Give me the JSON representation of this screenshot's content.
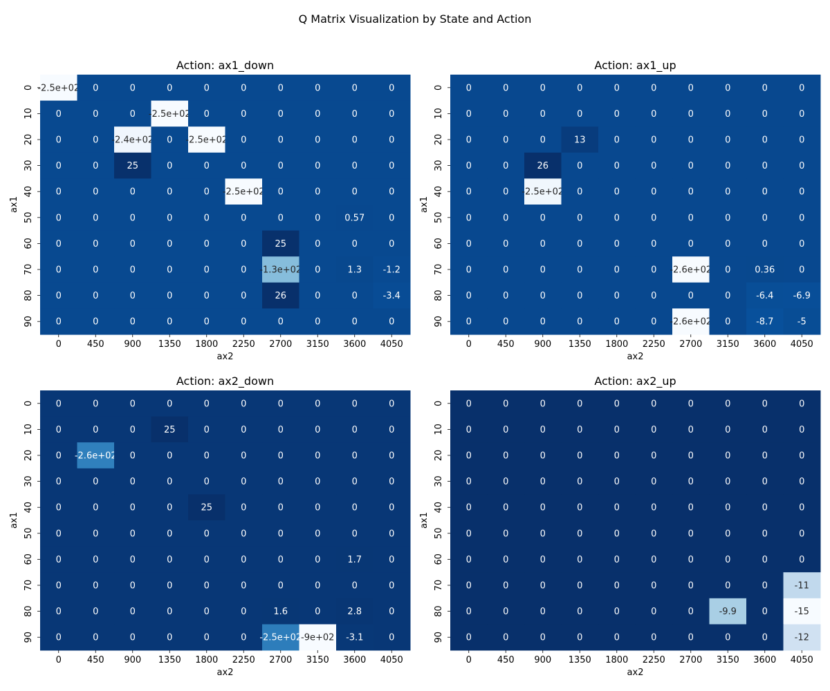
{
  "title": "Q Matrix Visualization by State and Action",
  "chart_data": [
    {
      "type": "heatmap",
      "title": "Action: ax1_down",
      "xlabel": "ax2",
      "ylabel": "ax1",
      "x_ticks": [
        "0",
        "450",
        "900",
        "1350",
        "1800",
        "2250",
        "2700",
        "3150",
        "3600",
        "4050"
      ],
      "y_ticks": [
        "0",
        "10",
        "20",
        "30",
        "40",
        "50",
        "60",
        "70",
        "80",
        "90"
      ],
      "colormap": "Blues",
      "values": [
        [
          -250,
          0,
          0,
          0,
          0,
          0,
          0,
          0,
          0,
          0
        ],
        [
          0,
          0,
          0,
          -250,
          0,
          0,
          0,
          0,
          0,
          0
        ],
        [
          0,
          0,
          -240,
          0,
          -250,
          0,
          0,
          0,
          0,
          0
        ],
        [
          0,
          0,
          25,
          0,
          0,
          0,
          0,
          0,
          0,
          0
        ],
        [
          0,
          0,
          0,
          0,
          0,
          -250,
          0,
          0,
          0,
          0
        ],
        [
          0,
          0,
          0,
          0,
          0,
          0,
          0,
          0,
          0.57,
          0
        ],
        [
          0,
          0,
          0,
          0,
          0,
          0,
          25,
          0,
          0,
          0
        ],
        [
          0,
          0,
          0,
          0,
          0,
          0,
          -130,
          0,
          1.3,
          -1.2
        ],
        [
          0,
          0,
          0,
          0,
          0,
          0,
          26,
          0,
          0,
          -3.4
        ],
        [
          0,
          0,
          0,
          0,
          0,
          0,
          0,
          0,
          0,
          0
        ]
      ],
      "labels": [
        [
          "-2.5e+02",
          "0",
          "0",
          "0",
          "0",
          "0",
          "0",
          "0",
          "0",
          "0"
        ],
        [
          "0",
          "0",
          "0",
          "-2.5e+02",
          "0",
          "0",
          "0",
          "0",
          "0",
          "0"
        ],
        [
          "0",
          "0",
          "-2.4e+02",
          "0",
          "-2.5e+02",
          "0",
          "0",
          "0",
          "0",
          "0"
        ],
        [
          "0",
          "0",
          "25",
          "0",
          "0",
          "0",
          "0",
          "0",
          "0",
          "0"
        ],
        [
          "0",
          "0",
          "0",
          "0",
          "0",
          "-2.5e+02",
          "0",
          "0",
          "0",
          "0"
        ],
        [
          "0",
          "0",
          "0",
          "0",
          "0",
          "0",
          "0",
          "0",
          "0.57",
          "0"
        ],
        [
          "0",
          "0",
          "0",
          "0",
          "0",
          "0",
          "25",
          "0",
          "0",
          "0"
        ],
        [
          "0",
          "0",
          "0",
          "0",
          "0",
          "0",
          "-1.3e+02",
          "0",
          "1.3",
          "-1.2"
        ],
        [
          "0",
          "0",
          "0",
          "0",
          "0",
          "0",
          "26",
          "0",
          "0",
          "-3.4"
        ],
        [
          "0",
          "0",
          "0",
          "0",
          "0",
          "0",
          "0",
          "0",
          "0",
          "0"
        ]
      ]
    },
    {
      "type": "heatmap",
      "title": "Action: ax1_up",
      "xlabel": "ax2",
      "ylabel": "ax1",
      "x_ticks": [
        "0",
        "450",
        "900",
        "1350",
        "1800",
        "2250",
        "2700",
        "3150",
        "3600",
        "4050"
      ],
      "y_ticks": [
        "0",
        "10",
        "20",
        "30",
        "40",
        "50",
        "60",
        "70",
        "80",
        "90"
      ],
      "colormap": "Blues",
      "values": [
        [
          0,
          0,
          0,
          0,
          0,
          0,
          0,
          0,
          0,
          0
        ],
        [
          0,
          0,
          0,
          0,
          0,
          0,
          0,
          0,
          0,
          0
        ],
        [
          0,
          0,
          0,
          13,
          0,
          0,
          0,
          0,
          0,
          0
        ],
        [
          0,
          0,
          26,
          0,
          0,
          0,
          0,
          0,
          0,
          0
        ],
        [
          0,
          0,
          -250,
          0,
          0,
          0,
          0,
          0,
          0,
          0
        ],
        [
          0,
          0,
          0,
          0,
          0,
          0,
          0,
          0,
          0,
          0
        ],
        [
          0,
          0,
          0,
          0,
          0,
          0,
          0,
          0,
          0,
          0
        ],
        [
          0,
          0,
          0,
          0,
          0,
          0,
          -260,
          0,
          0.36,
          0
        ],
        [
          0,
          0,
          0,
          0,
          0,
          0,
          0,
          0,
          -6.4,
          -6.9
        ],
        [
          0,
          0,
          0,
          0,
          0,
          0,
          -260,
          0,
          -8.7,
          -5
        ]
      ],
      "labels": [
        [
          "0",
          "0",
          "0",
          "0",
          "0",
          "0",
          "0",
          "0",
          "0",
          "0"
        ],
        [
          "0",
          "0",
          "0",
          "0",
          "0",
          "0",
          "0",
          "0",
          "0",
          "0"
        ],
        [
          "0",
          "0",
          "0",
          "13",
          "0",
          "0",
          "0",
          "0",
          "0",
          "0"
        ],
        [
          "0",
          "0",
          "26",
          "0",
          "0",
          "0",
          "0",
          "0",
          "0",
          "0"
        ],
        [
          "0",
          "0",
          "-2.5e+02",
          "0",
          "0",
          "0",
          "0",
          "0",
          "0",
          "0"
        ],
        [
          "0",
          "0",
          "0",
          "0",
          "0",
          "0",
          "0",
          "0",
          "0",
          "0"
        ],
        [
          "0",
          "0",
          "0",
          "0",
          "0",
          "0",
          "0",
          "0",
          "0",
          "0"
        ],
        [
          "0",
          "0",
          "0",
          "0",
          "0",
          "0",
          "-2.6e+02",
          "0",
          "0.36",
          "0"
        ],
        [
          "0",
          "0",
          "0",
          "0",
          "0",
          "0",
          "0",
          "0",
          "-6.4",
          "-6.9"
        ],
        [
          "0",
          "0",
          "0",
          "0",
          "0",
          "0",
          "-2.6e+02",
          "0",
          "-8.7",
          "-5"
        ]
      ]
    },
    {
      "type": "heatmap",
      "title": "Action: ax2_down",
      "xlabel": "ax2",
      "ylabel": "ax1",
      "x_ticks": [
        "0",
        "450",
        "900",
        "1350",
        "1800",
        "2250",
        "2700",
        "3150",
        "3600",
        "4050"
      ],
      "y_ticks": [
        "0",
        "10",
        "20",
        "30",
        "40",
        "50",
        "60",
        "70",
        "80",
        "90"
      ],
      "colormap": "Blues",
      "values": [
        [
          0,
          0,
          0,
          0,
          0,
          0,
          0,
          0,
          0,
          0
        ],
        [
          0,
          0,
          0,
          25,
          0,
          0,
          0,
          0,
          0,
          0
        ],
        [
          0,
          -260,
          0,
          0,
          0,
          0,
          0,
          0,
          0,
          0
        ],
        [
          0,
          0,
          0,
          0,
          0,
          0,
          0,
          0,
          0,
          0
        ],
        [
          0,
          0,
          0,
          0,
          25,
          0,
          0,
          0,
          0,
          0
        ],
        [
          0,
          0,
          0,
          0,
          0,
          0,
          0,
          0,
          0,
          0
        ],
        [
          0,
          0,
          0,
          0,
          0,
          0,
          0,
          0,
          1.7,
          0
        ],
        [
          0,
          0,
          0,
          0,
          0,
          0,
          0,
          0,
          0,
          0
        ],
        [
          0,
          0,
          0,
          0,
          0,
          0,
          1.6,
          0,
          2.8,
          0
        ],
        [
          0,
          0,
          0,
          0,
          0,
          0,
          -250,
          -900,
          -3.1,
          0
        ]
      ],
      "labels": [
        [
          "0",
          "0",
          "0",
          "0",
          "0",
          "0",
          "0",
          "0",
          "0",
          "0"
        ],
        [
          "0",
          "0",
          "0",
          "25",
          "0",
          "0",
          "0",
          "0",
          "0",
          "0"
        ],
        [
          "0",
          "-2.6e+02",
          "0",
          "0",
          "0",
          "0",
          "0",
          "0",
          "0",
          "0"
        ],
        [
          "0",
          "0",
          "0",
          "0",
          "0",
          "0",
          "0",
          "0",
          "0",
          "0"
        ],
        [
          "0",
          "0",
          "0",
          "0",
          "25",
          "0",
          "0",
          "0",
          "0",
          "0"
        ],
        [
          "0",
          "0",
          "0",
          "0",
          "0",
          "0",
          "0",
          "0",
          "0",
          "0"
        ],
        [
          "0",
          "0",
          "0",
          "0",
          "0",
          "0",
          "0",
          "0",
          "1.7",
          "0"
        ],
        [
          "0",
          "0",
          "0",
          "0",
          "0",
          "0",
          "0",
          "0",
          "0",
          "0"
        ],
        [
          "0",
          "0",
          "0",
          "0",
          "0",
          "0",
          "1.6",
          "0",
          "2.8",
          "0"
        ],
        [
          "0",
          "0",
          "0",
          "0",
          "0",
          "0",
          "-2.5e+02",
          "-9e+02",
          "-3.1",
          "0"
        ]
      ]
    },
    {
      "type": "heatmap",
      "title": "Action: ax2_up",
      "xlabel": "ax2",
      "ylabel": "ax1",
      "x_ticks": [
        "0",
        "450",
        "900",
        "1350",
        "1800",
        "2250",
        "2700",
        "3150",
        "3600",
        "4050"
      ],
      "y_ticks": [
        "0",
        "10",
        "20",
        "30",
        "40",
        "50",
        "60",
        "70",
        "80",
        "90"
      ],
      "colormap": "Blues",
      "values": [
        [
          0,
          0,
          0,
          0,
          0,
          0,
          0,
          0,
          0,
          0
        ],
        [
          0,
          0,
          0,
          0,
          0,
          0,
          0,
          0,
          0,
          0
        ],
        [
          0,
          0,
          0,
          0,
          0,
          0,
          0,
          0,
          0,
          0
        ],
        [
          0,
          0,
          0,
          0,
          0,
          0,
          0,
          0,
          0,
          0
        ],
        [
          0,
          0,
          0,
          0,
          0,
          0,
          0,
          0,
          0,
          0
        ],
        [
          0,
          0,
          0,
          0,
          0,
          0,
          0,
          0,
          0,
          0
        ],
        [
          0,
          0,
          0,
          0,
          0,
          0,
          0,
          0,
          0,
          0
        ],
        [
          0,
          0,
          0,
          0,
          0,
          0,
          0,
          0,
          0,
          -11
        ],
        [
          0,
          0,
          0,
          0,
          0,
          0,
          0,
          -9.9,
          0,
          -15
        ],
        [
          0,
          0,
          0,
          0,
          0,
          0,
          0,
          0,
          0,
          -12
        ]
      ],
      "labels": [
        [
          "0",
          "0",
          "0",
          "0",
          "0",
          "0",
          "0",
          "0",
          "0",
          "0"
        ],
        [
          "0",
          "0",
          "0",
          "0",
          "0",
          "0",
          "0",
          "0",
          "0",
          "0"
        ],
        [
          "0",
          "0",
          "0",
          "0",
          "0",
          "0",
          "0",
          "0",
          "0",
          "0"
        ],
        [
          "0",
          "0",
          "0",
          "0",
          "0",
          "0",
          "0",
          "0",
          "0",
          "0"
        ],
        [
          "0",
          "0",
          "0",
          "0",
          "0",
          "0",
          "0",
          "0",
          "0",
          "0"
        ],
        [
          "0",
          "0",
          "0",
          "0",
          "0",
          "0",
          "0",
          "0",
          "0",
          "0"
        ],
        [
          "0",
          "0",
          "0",
          "0",
          "0",
          "0",
          "0",
          "0",
          "0",
          "0"
        ],
        [
          "0",
          "0",
          "0",
          "0",
          "0",
          "0",
          "0",
          "0",
          "0",
          "-11"
        ],
        [
          "0",
          "0",
          "0",
          "0",
          "0",
          "0",
          "0",
          "-9.9",
          "0",
          "-15"
        ],
        [
          "0",
          "0",
          "0",
          "0",
          "0",
          "0",
          "0",
          "0",
          "0",
          "-12"
        ]
      ]
    }
  ]
}
